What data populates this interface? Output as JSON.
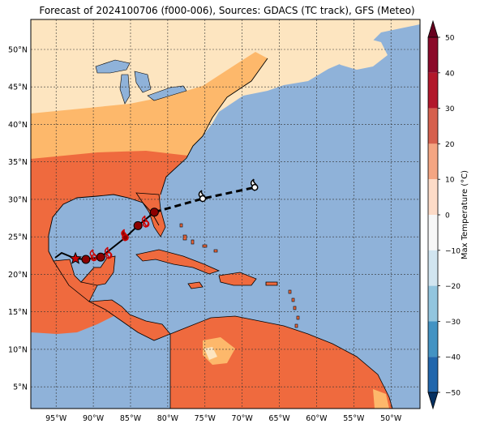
{
  "title": "Forecast of 2024100706 (f000-006), Sources: GDACS (TC track), GFS (Meteo)",
  "lat_ticks": [
    "50°N",
    "45°N",
    "40°N",
    "35°N",
    "30°N",
    "25°N",
    "20°N",
    "15°N",
    "10°N",
    "5°N"
  ],
  "lon_ticks": [
    "95°W",
    "90°W",
    "85°W",
    "80°W",
    "75°W",
    "70°W",
    "65°W",
    "60°W",
    "55°W",
    "50°W"
  ],
  "colorbar": {
    "label": "Max Temperature (°C)",
    "ticks": [
      "50",
      "40",
      "30",
      "20",
      "10",
      "0",
      "−10",
      "−20",
      "−30",
      "−40",
      "−50"
    ],
    "colors": [
      "#67001f",
      "#b2182b",
      "#d6604d",
      "#f4a582",
      "#fddbc7",
      "#f7f7f7",
      "#d1e5f0",
      "#92c5de",
      "#4393c3",
      "#2166ac",
      "#053061"
    ]
  },
  "colors": {
    "ocean": "#8fb2d9",
    "land_warm": "#fde5c0",
    "land_mild": "#fdb86b",
    "land_hot": "#ef6a3e",
    "lake": "#8fb2d9",
    "track": "#000000",
    "storm_past": "#8b0000",
    "storm_future": "#ffffff"
  },
  "track": {
    "points": [
      {
        "lon": -92.4,
        "lat": 22.1,
        "marker": "star"
      },
      {
        "lon": -91.0,
        "lat": 22.0,
        "marker": "dot"
      },
      {
        "lon": -89.0,
        "lat": 22.3,
        "marker": "dot"
      },
      {
        "lon": -85.7,
        "lat": 24.9,
        "marker": "hurricane-icon"
      },
      {
        "lon": -84.0,
        "lat": 26.5,
        "marker": "dot"
      },
      {
        "lon": -81.8,
        "lat": 28.3,
        "marker": "dot"
      },
      {
        "lon": -75.3,
        "lat": 30.1,
        "marker": "hurricane-icon"
      },
      {
        "lon": -68.3,
        "lat": 31.6,
        "marker": "hurricane-icon"
      }
    ]
  }
}
